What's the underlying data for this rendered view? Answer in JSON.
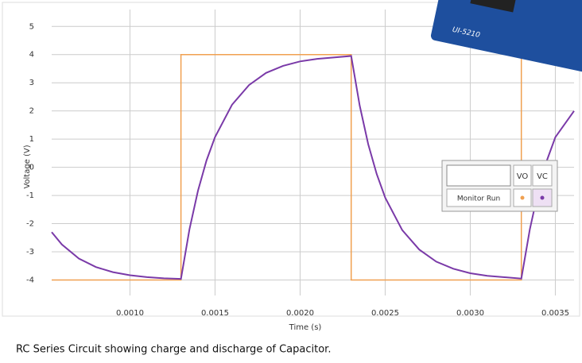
{
  "chart_data": {
    "type": "line",
    "x_label": "Time (s)",
    "y_label": "Voltage (V)",
    "caption": "RC Series Circuit showing charge and discharge of Capacitor.",
    "xlim": [
      0.00054,
      0.00361
    ],
    "ylim": [
      -4.55,
      5.6
    ],
    "xticks": [
      {
        "value": 0.001,
        "label": "0.0010"
      },
      {
        "value": 0.0015,
        "label": "0.0015"
      },
      {
        "value": 0.002,
        "label": "0.0020"
      },
      {
        "value": 0.0025,
        "label": "0.0025"
      },
      {
        "value": 0.003,
        "label": "0.0030"
      },
      {
        "value": 0.0035,
        "label": "0.0035"
      }
    ],
    "yticks": [
      5,
      4,
      3,
      2,
      1,
      0,
      -1,
      -2,
      -3,
      -4
    ],
    "grid": true,
    "series": [
      {
        "name": "VO",
        "color": "#f0a050",
        "x": [
          0.00054,
          0.0013,
          0.0013,
          0.0023,
          0.0023,
          0.0033,
          0.0033,
          0.00361
        ],
        "values": [
          -4,
          -4,
          4,
          4,
          -4,
          -4,
          4,
          4
        ]
      },
      {
        "name": "VC",
        "color": "#7a3aa8",
        "x": [
          0.00054,
          0.0006,
          0.0007,
          0.0008,
          0.0009,
          0.001,
          0.0011,
          0.0012,
          0.0013,
          0.00135,
          0.0014,
          0.00145,
          0.0015,
          0.0016,
          0.0017,
          0.0018,
          0.0019,
          0.002,
          0.0021,
          0.0023,
          0.00235,
          0.0024,
          0.00245,
          0.0025,
          0.0026,
          0.0027,
          0.0028,
          0.0029,
          0.003,
          0.0031,
          0.0033,
          0.00335,
          0.0034,
          0.00345,
          0.0035,
          0.00361
        ],
        "values": [
          -2.3,
          -2.74,
          -3.24,
          -3.54,
          -3.72,
          -3.83,
          -3.9,
          -3.94,
          -3.96,
          -2.2,
          -0.83,
          0.24,
          1.07,
          2.22,
          2.92,
          3.35,
          3.6,
          3.76,
          3.85,
          3.95,
          2.19,
          0.82,
          -0.24,
          -1.08,
          -2.23,
          -2.92,
          -3.35,
          -3.6,
          -3.76,
          -3.85,
          -3.95,
          -2.2,
          -0.83,
          0.24,
          1.07,
          2.0
        ]
      }
    ],
    "legend_table": {
      "row_label": "Monitor Run"
    },
    "photo_label": "UI-5210"
  }
}
